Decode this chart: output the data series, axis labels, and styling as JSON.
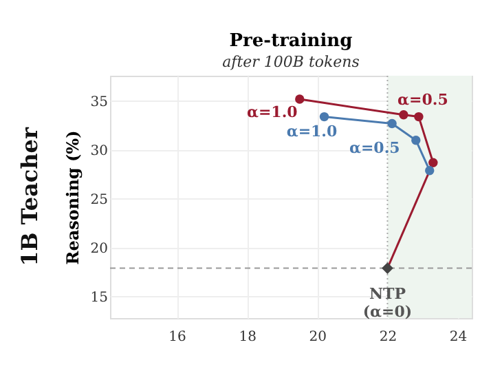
{
  "chart_data": {
    "type": "line",
    "title": "Pre-training",
    "subtitle": "after 100B tokens",
    "ylabel": "Reasoning (%)",
    "annotations": [
      {
        "text": "α=1.0",
        "x": 19.5,
        "y": 35.2
      },
      {
        "text": "α=0.5",
        "x": 22.89,
        "y": 33.4
      },
      {
        "text": "α=1.0",
        "x": 20.2,
        "y": 33.4
      },
      {
        "text": "α=0.5",
        "x": 22.81,
        "y": 31.0
      },
      {
        "text": "NTP\n(α=0)",
        "x": 22.0,
        "y": 17.9
      },
      "1B Teacher"
    ],
    "series": [
      {
        "color": "#9b1b30",
        "marker": "circle",
        "x": [
          19.5,
          22.46,
          22.89,
          23.3
        ],
        "values": [
          35.2,
          33.6,
          33.4,
          28.7
        ]
      },
      {
        "color": "#9b1b30",
        "marker": "none",
        "x": [
          23.3,
          22.0
        ],
        "values": [
          28.7,
          17.9
        ]
      },
      {
        "color": "#4a7aaf",
        "marker": "circle",
        "x": [
          20.2,
          22.13,
          22.81,
          23.2
        ],
        "values": [
          33.4,
          32.7,
          31.0,
          27.9
        ]
      },
      {
        "type": "scatter",
        "color": "#444444",
        "marker": "diamond",
        "x": [
          22.0
        ],
        "values": [
          17.9
        ]
      }
    ],
    "xlim": [
      14.1,
      24.4
    ],
    "ylim": [
      12.8,
      37.6
    ],
    "xticks": [
      16,
      18,
      20,
      22,
      24
    ],
    "yticks": [
      15,
      20,
      25,
      30,
      35
    ],
    "ref_lines": [
      {
        "axis": "x",
        "value": 22.0,
        "color": "#aaaaaa",
        "line_style": "dotted"
      },
      {
        "axis": "y",
        "value": 17.9,
        "color": "#999999",
        "line_style": "dashed"
      }
    ],
    "bands": [
      {
        "axis": "x",
        "from": 22.0,
        "to": 24.4,
        "color": "#eef5ef"
      }
    ],
    "grid": true,
    "legend": false
  }
}
